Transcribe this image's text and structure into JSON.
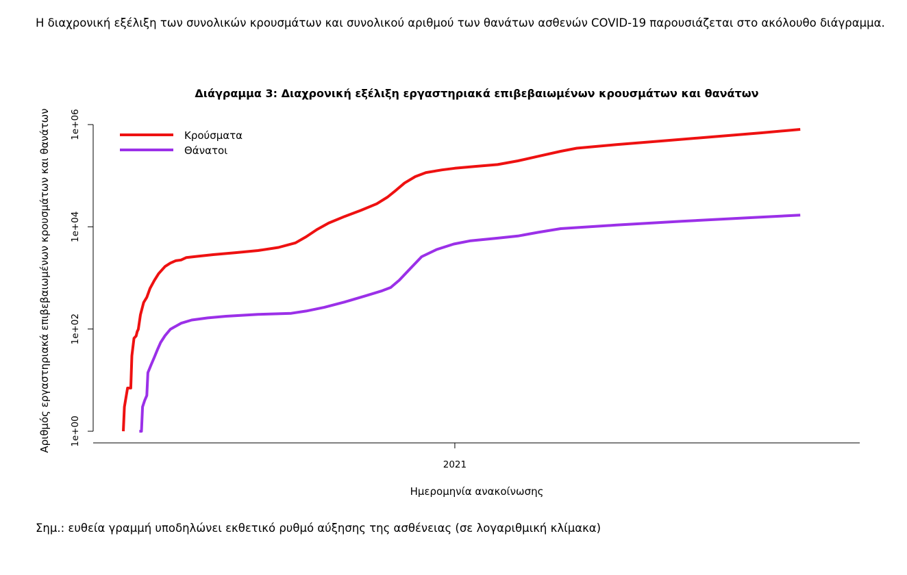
{
  "intro_text": "Η διαχρονική εξέλιξη των συνολικών κρουσμάτων και συνολικού αριθμού των θανάτων ασθενών COVID-19 παρουσιάζεται στο ακόλουθο διάγραμμα.",
  "note_text": "Σημ.: ευθεία γραμμή υποδηλώνει εκθετικό ρυθμό αύξησης της ασθένειας (σε λογαριθμική κλίμακα)",
  "chart_data": {
    "type": "line",
    "title": "Διάγραμμα 3: Διαχρονική εξέλιξη εργαστηριακά επιβεβαιωμένων κρουσμάτων και θανάτων",
    "xlabel": "Ημερομηνία ανακοίνωσης",
    "ylabel": "Αριθμός εργαστηριακά επιβεβαιωμένων κρουσμάτων και θανάτων",
    "x_ticks": [
      {
        "label": "2021",
        "date": "2021-01-01"
      }
    ],
    "xlim": [
      "2020-02-26",
      "2021-12-20"
    ],
    "y_scale": "log10",
    "ylim": [
      1,
      1000000
    ],
    "y_ticks": [
      {
        "label": "1e+00",
        "value": 1
      },
      {
        "label": "1e+02",
        "value": 100
      },
      {
        "label": "1e+04",
        "value": 10000
      },
      {
        "label": "1e+06",
        "value": 1000000
      }
    ],
    "grid": false,
    "legend_position": "top-left",
    "series": [
      {
        "name": "Κρούσματα",
        "color": "#ee1111",
        "points": [
          [
            "2020-02-26",
            1
          ],
          [
            "2020-02-27",
            3
          ],
          [
            "2020-03-01",
            7
          ],
          [
            "2020-03-04",
            7
          ],
          [
            "2020-03-05",
            30
          ],
          [
            "2020-03-07",
            66
          ],
          [
            "2020-03-09",
            73
          ],
          [
            "2020-03-10",
            89
          ],
          [
            "2020-03-11",
            99
          ],
          [
            "2020-03-13",
            190
          ],
          [
            "2020-03-16",
            331
          ],
          [
            "2020-03-19",
            418
          ],
          [
            "2020-03-22",
            624
          ],
          [
            "2020-03-26",
            892
          ],
          [
            "2020-03-30",
            1212
          ],
          [
            "2020-04-05",
            1673
          ],
          [
            "2020-04-10",
            1955
          ],
          [
            "2020-04-15",
            2170
          ],
          [
            "2020-04-20",
            2245
          ],
          [
            "2020-04-25",
            2506
          ],
          [
            "2020-05-05",
            2642
          ],
          [
            "2020-05-20",
            2850
          ],
          [
            "2020-06-10",
            3121
          ],
          [
            "2020-07-01",
            3432
          ],
          [
            "2020-07-20",
            3940
          ],
          [
            "2020-08-05",
            4855
          ],
          [
            "2020-08-15",
            6381
          ],
          [
            "2020-08-25",
            8819
          ],
          [
            "2020-09-05",
            11832
          ],
          [
            "2020-09-20",
            15928
          ],
          [
            "2020-10-05",
            20947
          ],
          [
            "2020-10-20",
            28216
          ],
          [
            "2020-10-30",
            38000
          ],
          [
            "2020-11-07",
            52000
          ],
          [
            "2020-11-15",
            72000
          ],
          [
            "2020-11-25",
            96000
          ],
          [
            "2020-12-05",
            115000
          ],
          [
            "2020-12-20",
            130000
          ],
          [
            "2021-01-01",
            140000
          ],
          [
            "2021-01-20",
            152000
          ],
          [
            "2021-02-10",
            165000
          ],
          [
            "2021-03-01",
            195000
          ],
          [
            "2021-03-20",
            240000
          ],
          [
            "2021-04-10",
            300000
          ],
          [
            "2021-04-25",
            345000
          ],
          [
            "2021-06-01",
            405000
          ],
          [
            "2021-07-15",
            482000
          ],
          [
            "2021-09-01",
            582000
          ],
          [
            "2021-10-15",
            690000
          ],
          [
            "2021-11-20",
            805000
          ]
        ]
      },
      {
        "name": "Θάνατοι",
        "color": "#9b30e8",
        "points": [
          [
            "2020-03-12",
            1
          ],
          [
            "2020-03-14",
            1
          ],
          [
            "2020-03-15",
            3
          ],
          [
            "2020-03-17",
            4
          ],
          [
            "2020-03-19",
            5
          ],
          [
            "2020-03-20",
            14
          ],
          [
            "2020-03-23",
            20
          ],
          [
            "2020-03-26",
            28
          ],
          [
            "2020-03-29",
            40
          ],
          [
            "2020-04-01",
            55
          ],
          [
            "2020-04-05",
            74
          ],
          [
            "2020-04-10",
            99
          ],
          [
            "2020-04-20",
            130
          ],
          [
            "2020-04-30",
            150
          ],
          [
            "2020-05-15",
            165
          ],
          [
            "2020-06-01",
            178
          ],
          [
            "2020-07-01",
            193
          ],
          [
            "2020-08-01",
            203
          ],
          [
            "2020-08-15",
            225
          ],
          [
            "2020-09-01",
            266
          ],
          [
            "2020-09-20",
            338
          ],
          [
            "2020-10-10",
            450
          ],
          [
            "2020-10-25",
            560
          ],
          [
            "2020-11-02",
            650
          ],
          [
            "2020-11-10",
            900
          ],
          [
            "2020-11-20",
            1500
          ],
          [
            "2020-12-01",
            2600
          ],
          [
            "2020-12-15",
            3600
          ],
          [
            "2020-12-31",
            4600
          ],
          [
            "2021-01-15",
            5300
          ],
          [
            "2021-02-10",
            6000
          ],
          [
            "2021-03-01",
            6600
          ],
          [
            "2021-03-20",
            7800
          ],
          [
            "2021-04-10",
            9200
          ],
          [
            "2021-06-01",
            10800
          ],
          [
            "2021-08-01",
            12800
          ],
          [
            "2021-10-01",
            15000
          ],
          [
            "2021-11-20",
            16900
          ]
        ]
      }
    ]
  }
}
